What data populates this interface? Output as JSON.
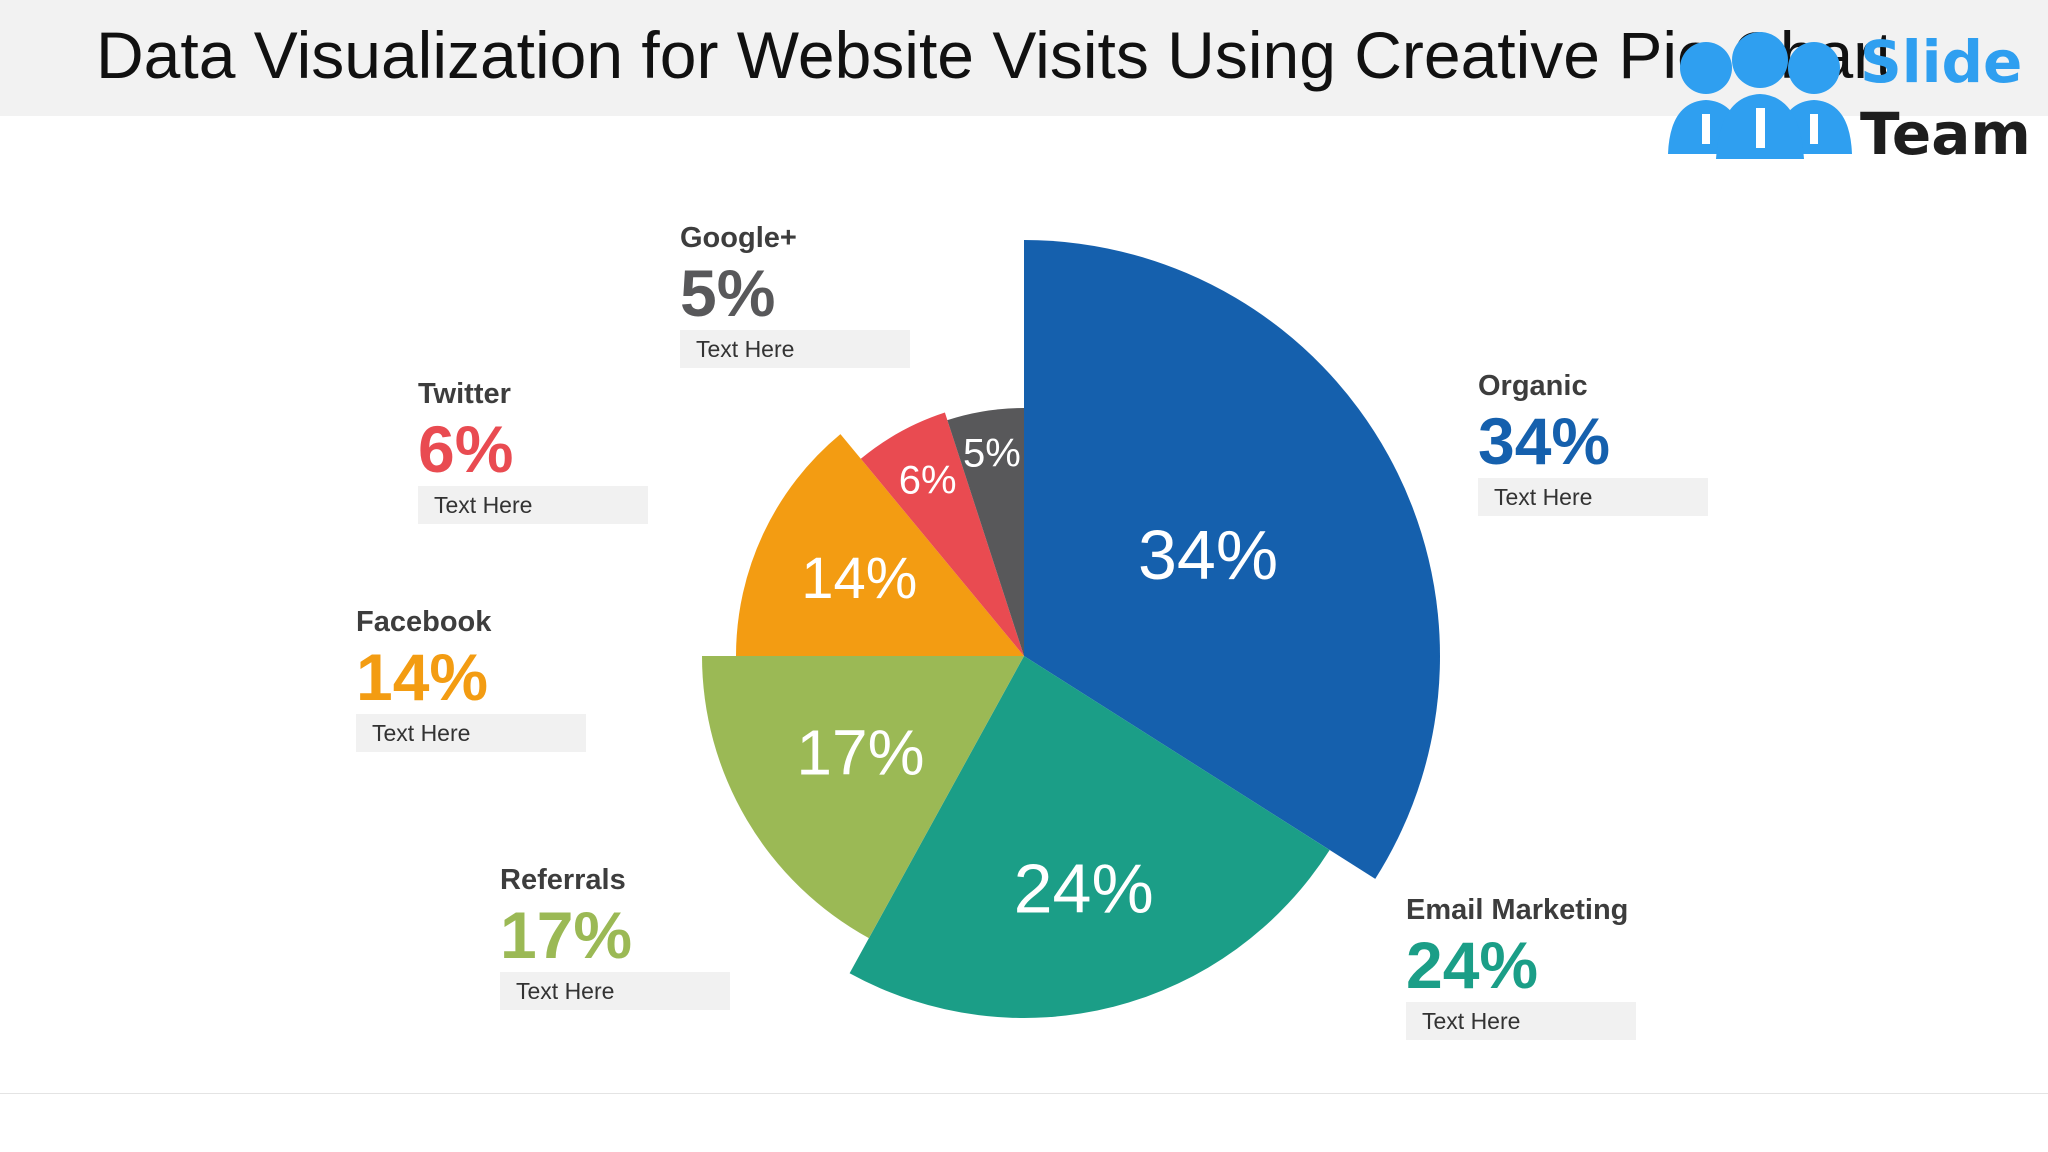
{
  "slide": {
    "title": "Data Visualization for Website Visits Using Creative Pie Chart",
    "logo": {
      "line1": "Slide",
      "line2": "Team",
      "color": "#2f9ff0",
      "icon": "people-icon"
    }
  },
  "chart_data": {
    "type": "pie",
    "title": "",
    "categories": [
      "Organic",
      "Email Marketing",
      "Referrals",
      "Facebook",
      "Twitter",
      "Google+"
    ],
    "values": [
      34,
      24,
      17,
      14,
      6,
      5
    ],
    "slice_labels": [
      "34%",
      "24%",
      "17%",
      "14%",
      "6%",
      "5%"
    ],
    "colors": [
      "#1560ad",
      "#1b9e87",
      "#9bb955",
      "#f39c12",
      "#e94b51",
      "#58585a"
    ],
    "start_angle": "12 o'clock, clockwise",
    "callouts": [
      {
        "name": "Organic",
        "value": "34%",
        "text": "Text Here"
      },
      {
        "name": "Email Marketing",
        "value": "24%",
        "text": "Text Here"
      },
      {
        "name": "Referrals",
        "value": "17%",
        "text": "Text Here"
      },
      {
        "name": "Facebook",
        "value": "14%",
        "text": "Text Here"
      },
      {
        "name": "Twitter",
        "value": "6%",
        "text": "Text Here"
      },
      {
        "name": "Google+",
        "value": "5%",
        "text": "Text Here"
      }
    ]
  }
}
